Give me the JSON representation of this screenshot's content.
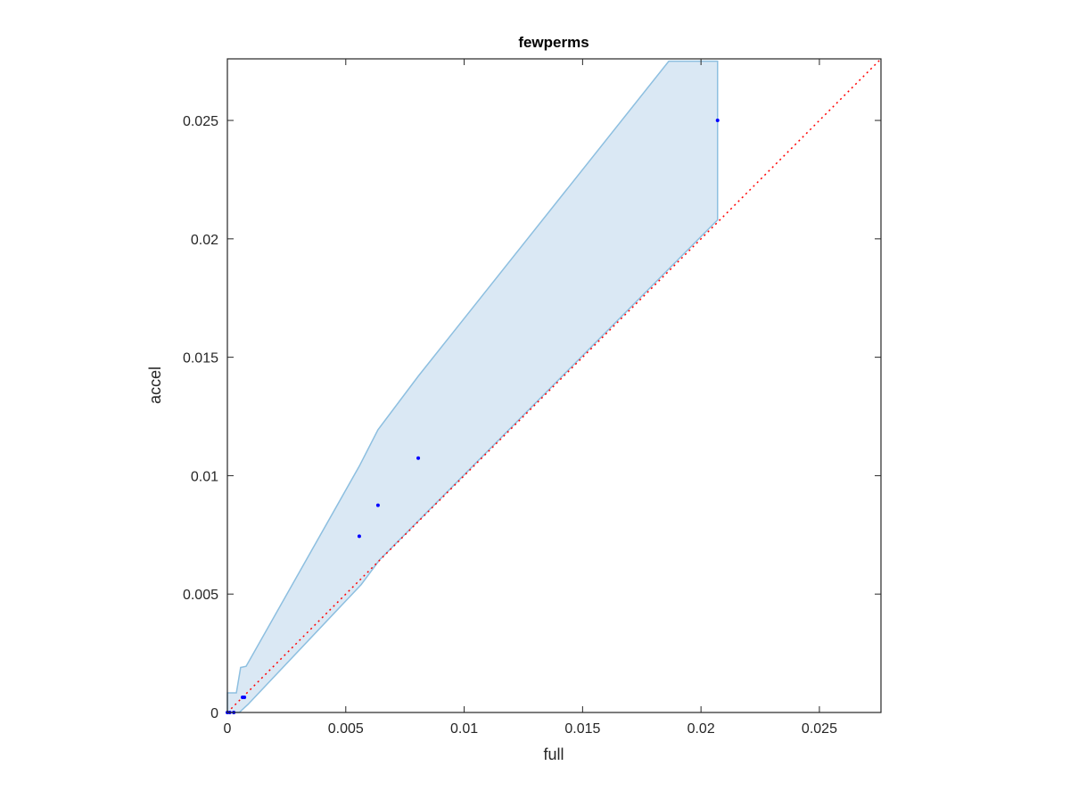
{
  "chart_data": {
    "type": "scatter",
    "title": "fewperms",
    "x_label": "full",
    "y_label": "accel",
    "xlim": [
      0,
      0.0276
    ],
    "ylim": [
      0,
      0.0276
    ],
    "xticks": [
      0,
      0.005,
      0.01,
      0.015,
      0.02,
      0.025
    ],
    "yticks": [
      0,
      0.005,
      0.01,
      0.015,
      0.02,
      0.025
    ],
    "band": {
      "color": "#dae8f4",
      "edge_color": "#8dbfe0",
      "x": [
        0,
        0.00038,
        0.00056,
        0.00079,
        0.00557,
        0.00636,
        0.00806,
        0.01864,
        0.0207,
        0.0207,
        0.00644,
        0.00565,
        0.00087,
        0.0005,
        0
      ],
      "y": [
        0.00083,
        0.00083,
        0.0019,
        0.00195,
        0.0104,
        0.01194,
        0.0142,
        0.0275,
        0.0275,
        0.0208,
        0.00646,
        0.0054,
        0.00034,
        0,
        0
      ]
    },
    "series": [
      {
        "color": "#0000ff",
        "x": [
          0.0207,
          0.00806,
          0.00636,
          0.00557,
          0.00064,
          0.00072,
          0,
          0.0001,
          0.00027
        ],
        "values": [
          0.025,
          0.01074,
          0.00875,
          0.00744,
          0.00064,
          0.00064,
          0,
          0,
          0
        ]
      }
    ],
    "diagonal": {
      "color": "#ff0000",
      "x": [
        0,
        0.0276
      ],
      "values": [
        0,
        0.0276
      ]
    }
  }
}
